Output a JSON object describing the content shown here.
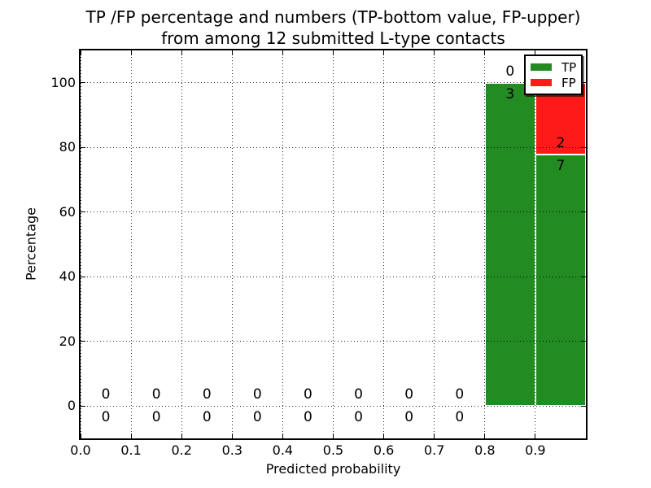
{
  "chart_data": {
    "type": "bar",
    "stacked": true,
    "title_lines": [
      "TP /FP percentage and numbers (TP-bottom value, FP-upper)",
      "from among 12 submitted L-type contacts"
    ],
    "xlabel": "Predicted probability",
    "ylabel": "Percentage",
    "xlim": [
      0.0,
      1.0
    ],
    "ylim": [
      -10,
      110
    ],
    "xticks": [
      {
        "value": 0.0,
        "label": "0.0"
      },
      {
        "value": 0.1,
        "label": "0.1"
      },
      {
        "value": 0.2,
        "label": "0.2"
      },
      {
        "value": 0.3,
        "label": "0.3"
      },
      {
        "value": 0.4,
        "label": "0.4"
      },
      {
        "value": 0.5,
        "label": "0.5"
      },
      {
        "value": 0.6,
        "label": "0.6"
      },
      {
        "value": 0.7,
        "label": "0.7"
      },
      {
        "value": 0.8,
        "label": "0.8"
      },
      {
        "value": 0.9,
        "label": "0.9"
      }
    ],
    "yticks": [
      {
        "value": 0,
        "label": "0"
      },
      {
        "value": 20,
        "label": "20"
      },
      {
        "value": 40,
        "label": "40"
      },
      {
        "value": 60,
        "label": "60"
      },
      {
        "value": 80,
        "label": "80"
      },
      {
        "value": 100,
        "label": "100"
      }
    ],
    "grid": {
      "style": "dotted",
      "color": "#000000",
      "above_bars": true
    },
    "legend": {
      "position": "upper-right",
      "entries": [
        {
          "label": "TP",
          "color": "#228b22"
        },
        {
          "label": "FP",
          "color": "#ff1a1a"
        }
      ]
    },
    "bar_edge_color": "#ffffff",
    "total_contacts": 12,
    "bins": [
      {
        "x0": 0.0,
        "x1": 0.1,
        "tp_count": 0,
        "fp_count": 0,
        "tp_pct": 0,
        "fp_pct": 0
      },
      {
        "x0": 0.1,
        "x1": 0.2,
        "tp_count": 0,
        "fp_count": 0,
        "tp_pct": 0,
        "fp_pct": 0
      },
      {
        "x0": 0.2,
        "x1": 0.3,
        "tp_count": 0,
        "fp_count": 0,
        "tp_pct": 0,
        "fp_pct": 0
      },
      {
        "x0": 0.3,
        "x1": 0.4,
        "tp_count": 0,
        "fp_count": 0,
        "tp_pct": 0,
        "fp_pct": 0
      },
      {
        "x0": 0.4,
        "x1": 0.5,
        "tp_count": 0,
        "fp_count": 0,
        "tp_pct": 0,
        "fp_pct": 0
      },
      {
        "x0": 0.5,
        "x1": 0.6,
        "tp_count": 0,
        "fp_count": 0,
        "tp_pct": 0,
        "fp_pct": 0
      },
      {
        "x0": 0.6,
        "x1": 0.7,
        "tp_count": 0,
        "fp_count": 0,
        "tp_pct": 0,
        "fp_pct": 0
      },
      {
        "x0": 0.7,
        "x1": 0.8,
        "tp_count": 0,
        "fp_count": 0,
        "tp_pct": 0,
        "fp_pct": 0
      },
      {
        "x0": 0.8,
        "x1": 0.9,
        "tp_count": 3,
        "fp_count": 0,
        "tp_pct": 100,
        "fp_pct": 0
      },
      {
        "x0": 0.9,
        "x1": 1.0,
        "tp_count": 7,
        "fp_count": 2,
        "tp_pct": 77.78,
        "fp_pct": 22.22
      }
    ]
  }
}
